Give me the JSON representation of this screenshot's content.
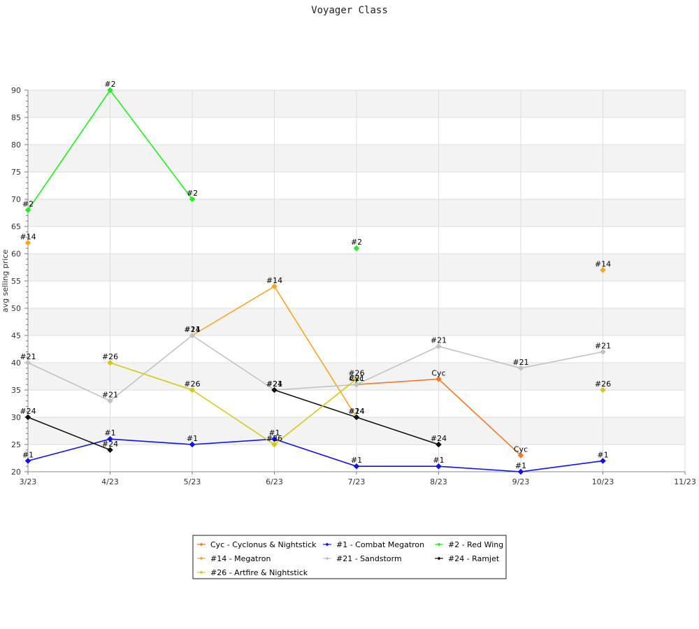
{
  "chart_data": {
    "type": "line",
    "title": "Voyager Class",
    "xlabel": "",
    "ylabel": "avg selling price",
    "categories": [
      "3/23",
      "4/23",
      "5/23",
      "6/23",
      "7/23",
      "8/23",
      "9/23",
      "10/23",
      "11/23"
    ],
    "ylim": [
      20,
      90
    ],
    "yticks": [
      20,
      25,
      30,
      35,
      40,
      45,
      50,
      55,
      60,
      65,
      70,
      75,
      80,
      85,
      90
    ],
    "grid": true,
    "legend_position": "bottom-center",
    "series": [
      {
        "name": "Cyc - Cyclonus & Nightstick",
        "label": "Cyc",
        "color": "#f07a2a",
        "values": [
          null,
          null,
          null,
          null,
          36,
          37,
          23,
          null,
          null
        ]
      },
      {
        "name": "#1 - Combat Megatron",
        "label": "#1",
        "color": "#1111ee",
        "values": [
          22,
          26,
          25,
          26,
          21,
          21,
          20,
          22,
          null
        ]
      },
      {
        "name": "#2 - Red Wing",
        "label": "#2",
        "color": "#22ee22",
        "values": [
          68,
          90,
          70,
          null,
          61,
          null,
          null,
          null,
          null
        ]
      },
      {
        "name": "#14 - Megatron",
        "label": "#14",
        "color": "#f5a623",
        "values": [
          62,
          null,
          45,
          54,
          30,
          null,
          null,
          57,
          null
        ]
      },
      {
        "name": "#21 - Sandstorm",
        "label": "#21",
        "color": "#c2c2c2",
        "values": [
          40,
          33,
          45,
          35,
          36,
          43,
          39,
          42,
          null
        ]
      },
      {
        "name": "#24 - Ramjet",
        "label": "#24",
        "color": "#111111",
        "values": [
          30,
          24,
          null,
          35,
          30,
          25,
          null,
          null,
          null
        ]
      },
      {
        "name": "#26 - Artfire & Nightstick",
        "label": "#26",
        "color": "#d4c81e",
        "values": [
          null,
          40,
          35,
          25,
          37,
          null,
          null,
          35,
          null
        ]
      }
    ]
  }
}
